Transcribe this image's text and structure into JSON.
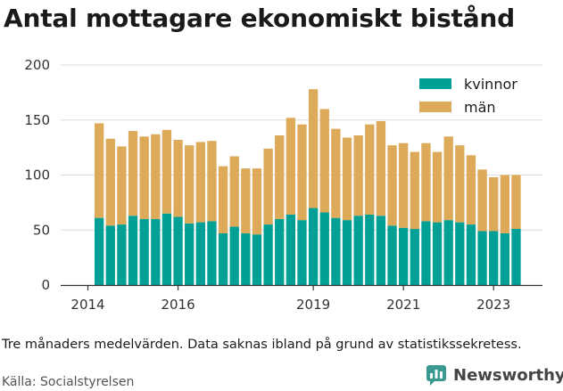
{
  "title": "Antal mottagare ekonomiskt bistånd",
  "caption": "Tre månaders medelvärden. Data saknas ibland på grund av statistikssekretess.",
  "source": "Källa: Socialstyrelsen",
  "brand": "Newsworthy",
  "colors": {
    "kvinnor": "#00a097",
    "man": "#dcaa58",
    "grid": "#dddddd",
    "axis": "#333333",
    "brand_icon": "#3a9a8f"
  },
  "chart_data": {
    "type": "bar",
    "stacked": true,
    "title": "Antal mottagare ekonomiskt bistånd",
    "xlabel": "",
    "ylabel": "",
    "ylim": [
      0,
      200
    ],
    "yticks": [
      0,
      50,
      100,
      150,
      200
    ],
    "xticks": [
      "2014",
      "2016",
      "2019",
      "2021",
      "2023"
    ],
    "grid": true,
    "legend_position": "top-right",
    "categories": [
      "2014 Q2",
      "2014 Q3",
      "2014 Q4",
      "2015 Q1",
      "2015 Q2",
      "2015 Q3",
      "2015 Q4",
      "2016 Q1",
      "2016 Q2",
      "2016 Q3",
      "2016 Q4",
      "2017 Q1",
      "2017 Q2",
      "2017 Q3",
      "2017 Q4",
      "2018 Q1",
      "2018 Q2",
      "2018 Q3",
      "2018 Q4",
      "2019 Q1",
      "2019 Q2",
      "2019 Q3",
      "2019 Q4",
      "2020 Q1",
      "2020 Q2",
      "2020 Q3",
      "2020 Q4",
      "2021 Q1",
      "2021 Q2",
      "2021 Q3",
      "2021 Q4",
      "2022 Q1",
      "2022 Q2",
      "2022 Q3",
      "2022 Q4",
      "2023 Q1",
      "2023 Q2",
      "2023 Q3",
      "2023 Q4"
    ],
    "series": [
      {
        "name": "kvinnor",
        "values": [
          61,
          54,
          55,
          63,
          60,
          60,
          65,
          62,
          56,
          57,
          58,
          47,
          53,
          47,
          46,
          55,
          60,
          64,
          59,
          70,
          66,
          61,
          59,
          63,
          64,
          63,
          54,
          52,
          51,
          58,
          57,
          59,
          57,
          55,
          49,
          49,
          47,
          51,
          0
        ]
      },
      {
        "name": "män",
        "values": [
          86,
          79,
          71,
          77,
          75,
          77,
          76,
          70,
          71,
          73,
          73,
          61,
          64,
          59,
          60,
          69,
          76,
          88,
          87,
          108,
          94,
          81,
          75,
          73,
          82,
          86,
          73,
          77,
          70,
          71,
          64,
          76,
          70,
          63,
          56,
          49,
          53,
          49,
          0
        ]
      }
    ]
  }
}
